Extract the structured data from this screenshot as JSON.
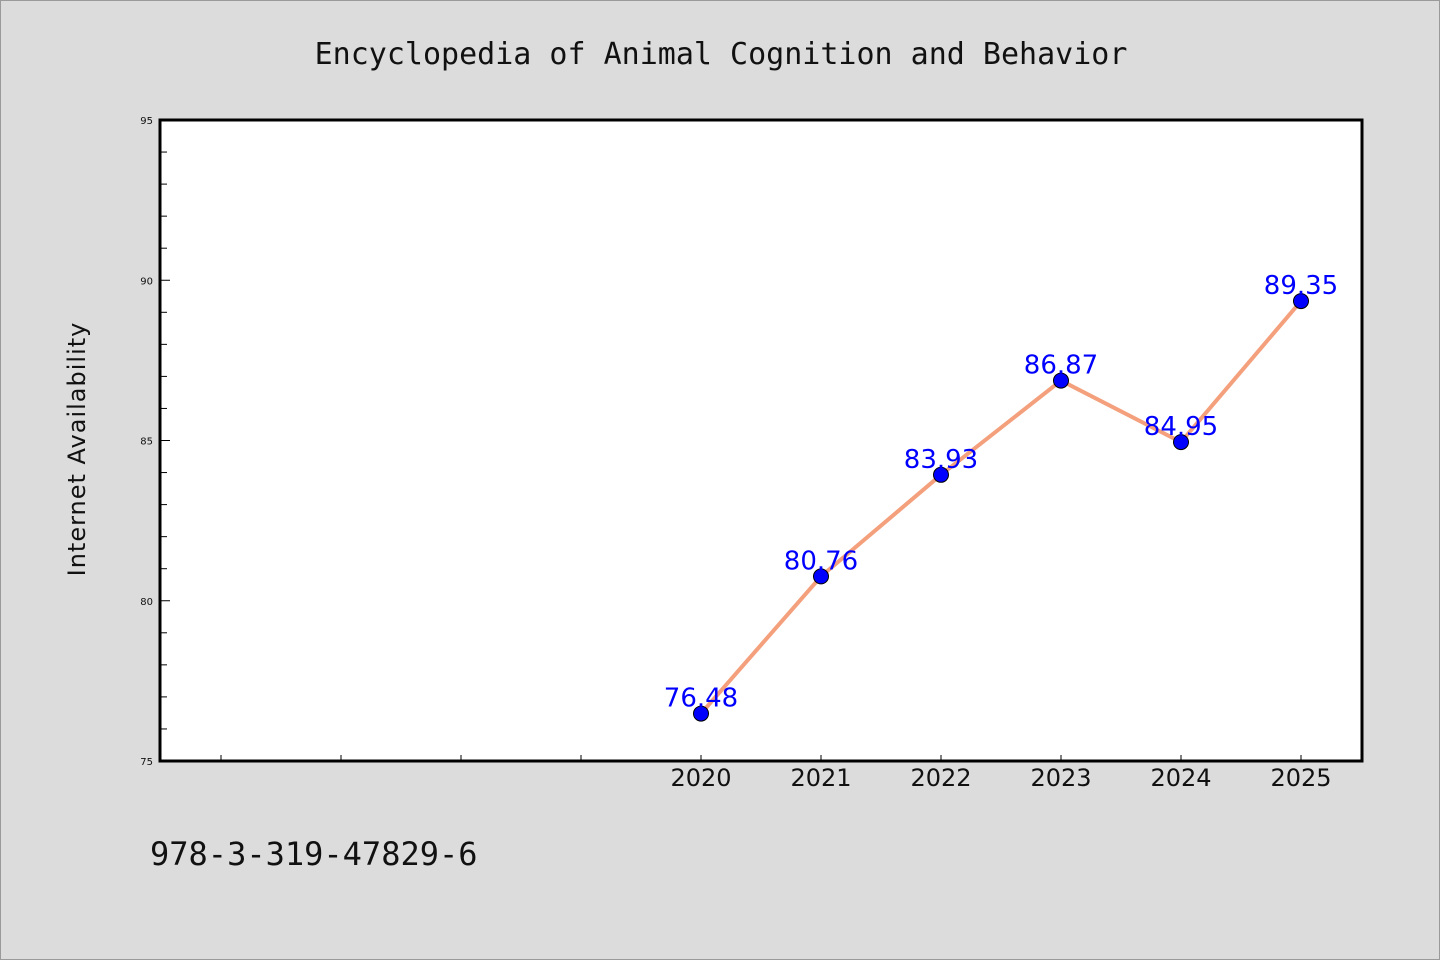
{
  "chart_data": {
    "type": "line",
    "title": "Encyclopedia of Animal Cognition and Behavior",
    "xlabel": "",
    "ylabel": "Internet Availability",
    "x": [
      "2020",
      "2021",
      "2022",
      "2023",
      "2024",
      "2025"
    ],
    "series": [
      {
        "values": [
          76.48,
          80.76,
          83.93,
          86.87,
          84.95,
          89.35
        ],
        "data_labels": [
          "76.48",
          "80.76",
          "83.93",
          "86.87",
          "84.95",
          "89.35"
        ],
        "line_color": "#f4a07c",
        "marker_color": "#0000ff"
      }
    ],
    "ylim": [
      75,
      95
    ],
    "yticks": [
      "75",
      "80",
      "85",
      "90",
      "95"
    ],
    "grid": false,
    "legend": "none",
    "footer_text": "978-3-319-47829-6"
  },
  "colors": {
    "background": "#dcdcdc",
    "plot_background": "#ffffff",
    "data_label": "#0000ff"
  }
}
